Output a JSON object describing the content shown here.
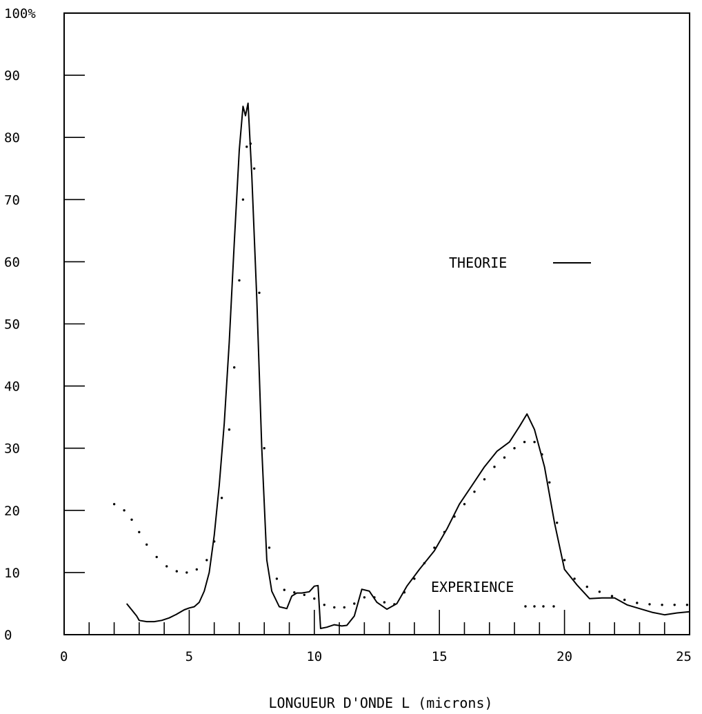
{
  "chart_data": {
    "type": "line",
    "title": "",
    "xlabel": "LONGUEUR D'ONDE L (microns)",
    "ylabel": "",
    "xlim": [
      0,
      25
    ],
    "ylim": [
      0,
      100
    ],
    "x_ticks": [
      0,
      5,
      10,
      15,
      20,
      25
    ],
    "x_tick_labels": [
      "0",
      "5",
      "10",
      "15",
      "20",
      "25"
    ],
    "y_ticks": [
      0,
      10,
      20,
      30,
      40,
      50,
      60,
      70,
      80,
      90,
      100
    ],
    "y_tick_labels": [
      "0",
      "10",
      "20",
      "30",
      "40",
      "50",
      "60",
      "70",
      "80",
      "90",
      "100%"
    ],
    "x_minor_step": 1,
    "grid": false,
    "legend": [
      {
        "label": "THEORIE",
        "style": "solid",
        "placement": "right-middle"
      },
      {
        "label": "EXPERIENCE",
        "style": "dotted",
        "placement": "lower-right"
      }
    ],
    "series": [
      {
        "name": "THEORIE",
        "style": "solid",
        "x": [
          2.5,
          2.7,
          2.9,
          3.0,
          3.3,
          3.6,
          3.9,
          4.2,
          4.5,
          4.8,
          5.0,
          5.2,
          5.4,
          5.6,
          5.8,
          6.0,
          6.2,
          6.4,
          6.6,
          6.8,
          7.0,
          7.15,
          7.25,
          7.35,
          7.5,
          7.7,
          7.9,
          8.1,
          8.3,
          8.6,
          8.9,
          9.1,
          9.3,
          9.5,
          9.8,
          10.0,
          10.15,
          10.25,
          10.5,
          10.8,
          11.1,
          11.3,
          11.6,
          11.9,
          12.2,
          12.5,
          12.9,
          13.3,
          13.7,
          14.2,
          14.8,
          15.3,
          15.8,
          16.3,
          16.8,
          17.3,
          17.8,
          18.2,
          18.5,
          18.8,
          19.2,
          19.6,
          20.0,
          20.5,
          21.0,
          21.5,
          22.0,
          22.5,
          23.0,
          23.5,
          24.0,
          24.5,
          25.0
        ],
        "y": [
          5.0,
          4.0,
          3.0,
          2.3,
          2.1,
          2.1,
          2.3,
          2.7,
          3.3,
          4.0,
          4.3,
          4.5,
          5.2,
          7.0,
          10.0,
          16.0,
          24.0,
          34.0,
          47.0,
          63.0,
          78.0,
          85.0,
          83.5,
          85.5,
          74.0,
          54.0,
          30.0,
          12.0,
          7.0,
          4.5,
          4.2,
          6.2,
          6.7,
          6.7,
          6.9,
          7.8,
          7.9,
          1.0,
          1.2,
          1.6,
          1.4,
          1.5,
          3.0,
          7.3,
          7.0,
          5.2,
          4.1,
          5.0,
          7.8,
          10.5,
          13.5,
          17.0,
          21.0,
          24.0,
          27.0,
          29.5,
          31.0,
          33.5,
          35.5,
          33.0,
          27.0,
          18.0,
          10.5,
          8.0,
          5.8,
          5.9,
          5.9,
          4.8,
          4.2,
          3.6,
          3.2,
          3.5,
          3.7
        ]
      },
      {
        "name": "EXPERIENCE",
        "style": "dotted",
        "x": [
          2.0,
          2.4,
          2.7,
          3.0,
          3.3,
          3.7,
          4.1,
          4.5,
          4.9,
          5.3,
          5.7,
          6.0,
          6.3,
          6.6,
          6.8,
          7.0,
          7.15,
          7.3,
          7.45,
          7.6,
          7.8,
          8.0,
          8.2,
          8.5,
          8.8,
          9.2,
          9.6,
          10.0,
          10.4,
          10.8,
          11.2,
          11.6,
          12.0,
          12.4,
          12.8,
          13.2,
          13.6,
          14.0,
          14.4,
          14.8,
          15.2,
          15.6,
          16.0,
          16.4,
          16.8,
          17.2,
          17.6,
          18.0,
          18.4,
          18.8,
          19.1,
          19.4,
          19.7,
          20.0,
          20.4,
          20.9,
          21.4,
          21.9,
          22.4,
          22.9,
          23.4,
          23.9,
          24.4,
          24.9
        ],
        "y": [
          21.0,
          20.0,
          18.5,
          16.5,
          14.5,
          12.5,
          11.0,
          10.2,
          10.0,
          10.5,
          12.0,
          15.0,
          22.0,
          33.0,
          43.0,
          57.0,
          70.0,
          78.5,
          79.0,
          75.0,
          55.0,
          30.0,
          14.0,
          9.0,
          7.2,
          6.8,
          6.4,
          5.8,
          4.8,
          4.4,
          4.4,
          5.0,
          6.0,
          6.0,
          5.2,
          4.9,
          6.8,
          9.0,
          11.5,
          14.0,
          16.5,
          19.0,
          21.0,
          23.0,
          25.0,
          27.0,
          28.5,
          30.0,
          31.0,
          31.0,
          29.0,
          24.5,
          18.0,
          12.0,
          9.0,
          7.7,
          6.9,
          6.2,
          5.6,
          5.1,
          4.9,
          4.8,
          4.8,
          4.8
        ]
      }
    ]
  }
}
